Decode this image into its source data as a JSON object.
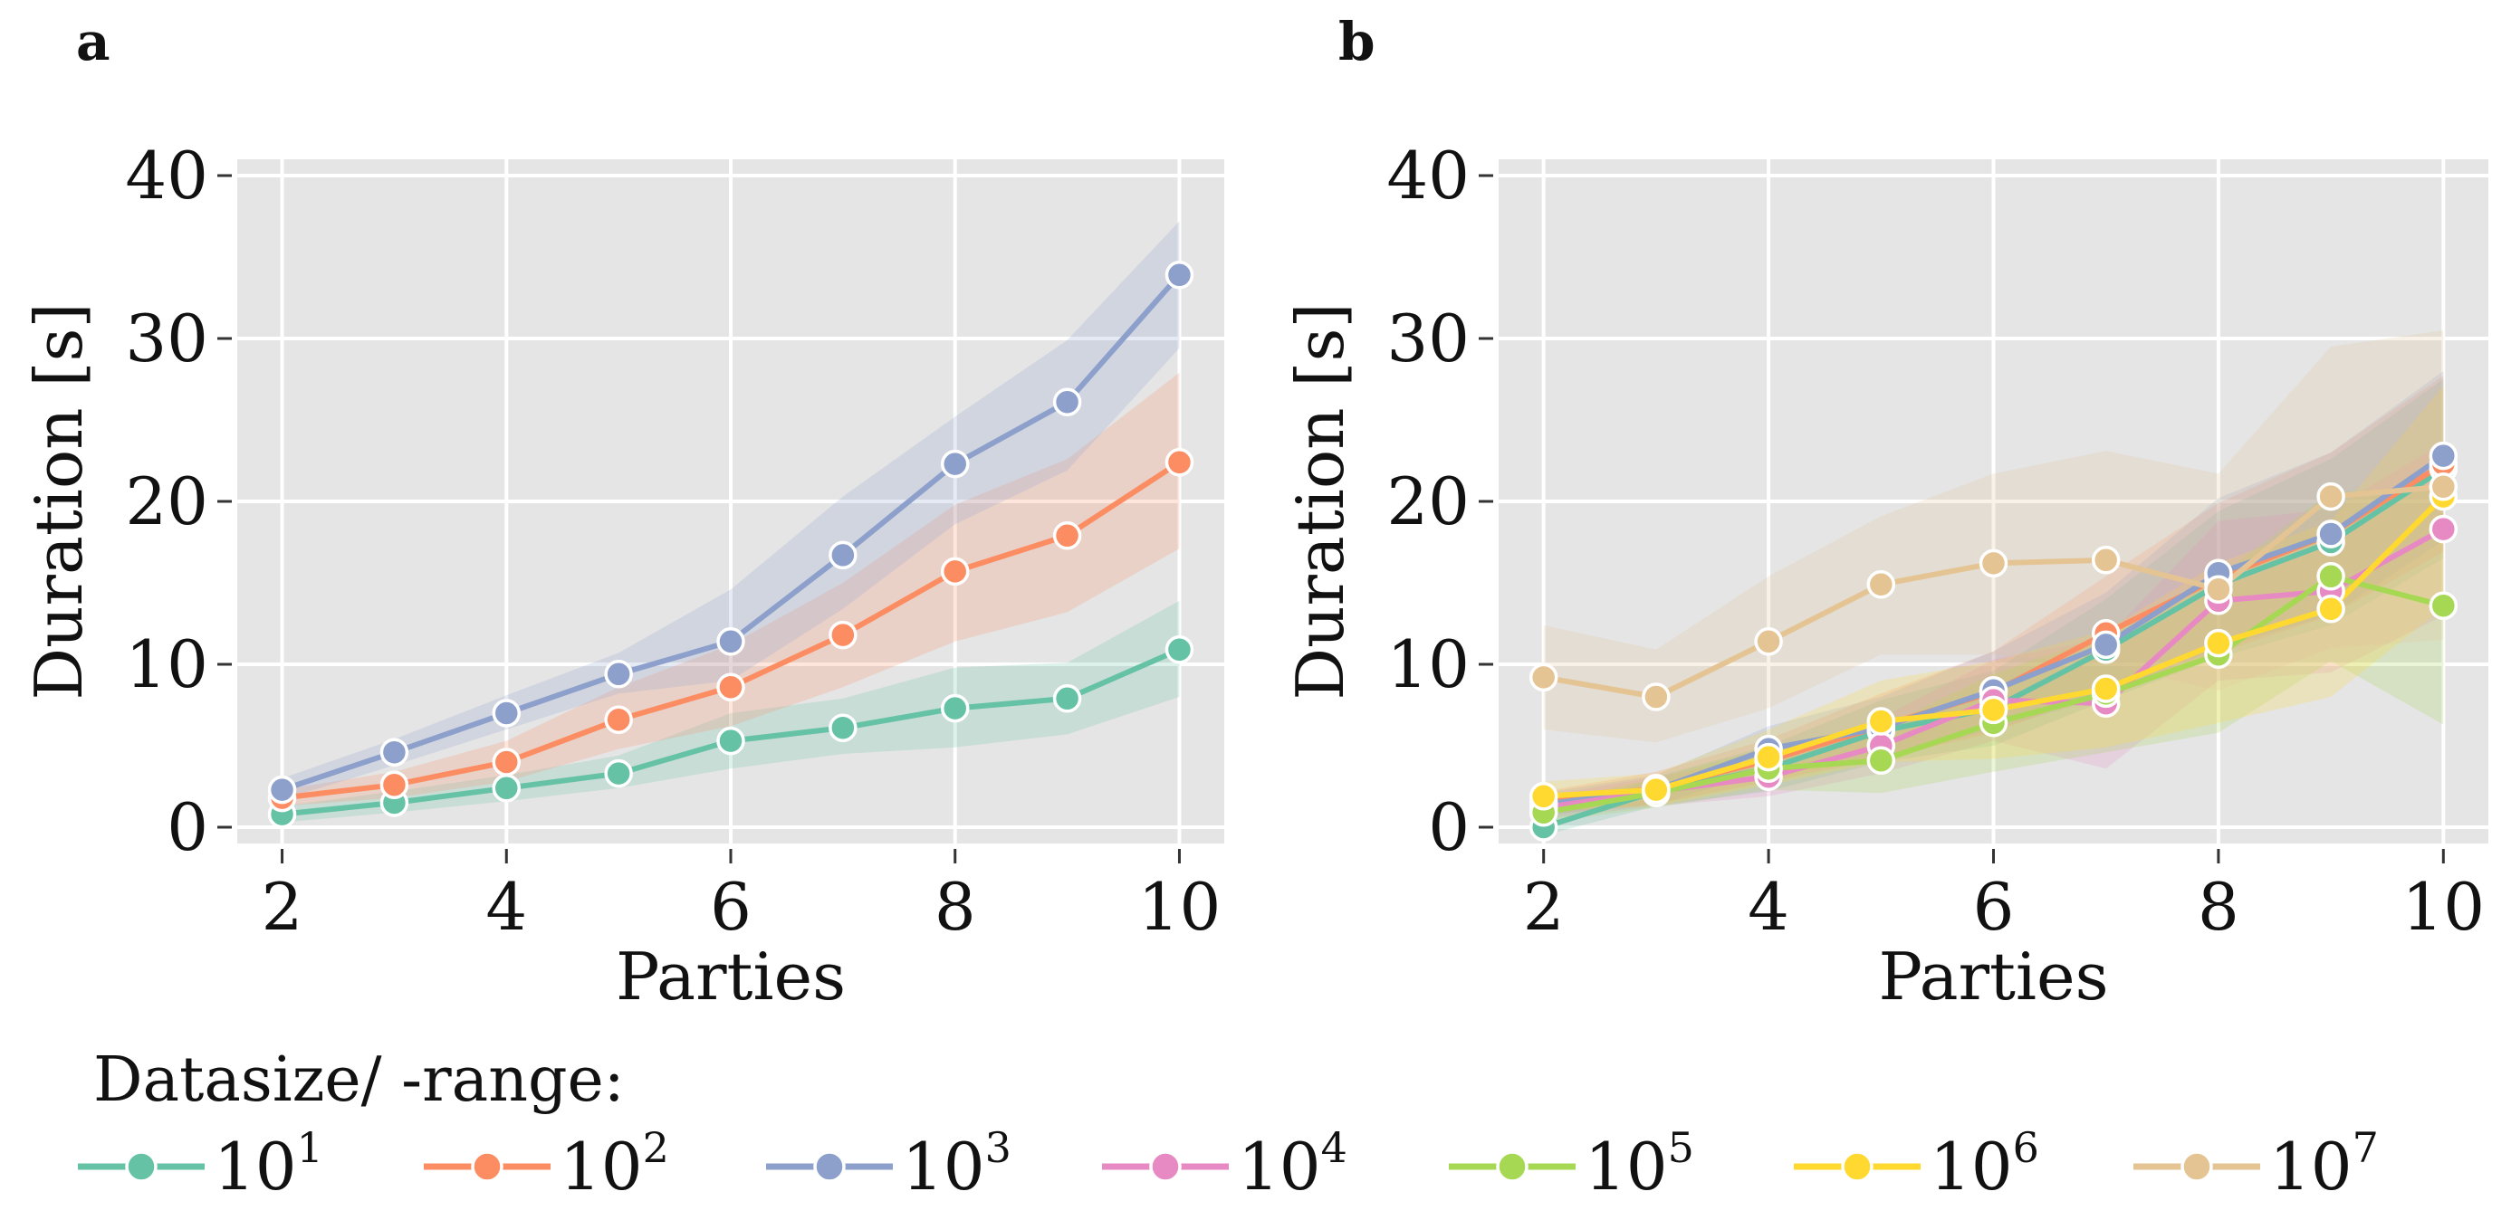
{
  "chart_data": [
    {
      "panel": "a",
      "type": "line",
      "xlabel": "Parties",
      "ylabel": "Duration [s]",
      "xlim": [
        1.6,
        10.4
      ],
      "ylim": [
        -1,
        41
      ],
      "xticks": [
        2,
        4,
        6,
        8,
        10
      ],
      "xtick_labels": [
        "2",
        "4",
        "6",
        "8",
        "10"
      ],
      "yticks": [
        0,
        10,
        20,
        30,
        40
      ],
      "ytick_labels": [
        "0",
        "10",
        "20",
        "30",
        "40"
      ],
      "grid": true,
      "x": [
        2,
        3,
        4,
        5,
        6,
        7,
        8,
        9,
        10
      ],
      "series": [
        {
          "name": "10^1",
          "color": "#66c2a5",
          "values": [
            0.8,
            1.5,
            2.4,
            3.3,
            5.3,
            6.1,
            7.3,
            7.9,
            10.9
          ],
          "lower": [
            0.3,
            0.9,
            1.6,
            2.4,
            3.6,
            4.5,
            4.9,
            5.7,
            8.0
          ],
          "upper": [
            1.3,
            2.2,
            3.2,
            4.4,
            7.0,
            7.9,
            9.8,
            10.1,
            13.9
          ]
        },
        {
          "name": "10^2",
          "color": "#fc8d62",
          "values": [
            1.8,
            2.6,
            4.0,
            6.6,
            8.6,
            11.8,
            15.7,
            17.9,
            22.4
          ],
          "lower": [
            1.3,
            1.8,
            2.8,
            4.8,
            6.2,
            8.6,
            11.4,
            13.2,
            17.1
          ],
          "upper": [
            2.3,
            3.4,
            5.3,
            8.6,
            11.2,
            15.0,
            19.8,
            22.6,
            27.9
          ]
        },
        {
          "name": "10^3",
          "color": "#8da0cb",
          "values": [
            2.3,
            4.6,
            7.0,
            9.4,
            11.4,
            16.7,
            22.3,
            26.1,
            33.9
          ],
          "lower": [
            1.7,
            3.8,
            6.0,
            8.2,
            9.0,
            13.4,
            18.6,
            21.9,
            29.4
          ],
          "upper": [
            3.0,
            5.4,
            8.1,
            10.7,
            14.6,
            20.3,
            25.2,
            29.9,
            37.2
          ]
        }
      ]
    },
    {
      "panel": "b",
      "type": "line",
      "xlabel": "Parties",
      "ylabel": "Duration [s]",
      "xlim": [
        1.6,
        10.4
      ],
      "ylim": [
        -1,
        41
      ],
      "xticks": [
        2,
        4,
        6,
        8,
        10
      ],
      "xtick_labels": [
        "2",
        "4",
        "6",
        "8",
        "10"
      ],
      "yticks": [
        0,
        10,
        20,
        30,
        40
      ],
      "ytick_labels": [
        "0",
        "10",
        "20",
        "30",
        "40"
      ],
      "grid": true,
      "x": [
        2,
        3,
        4,
        5,
        6,
        7,
        8,
        9,
        10
      ],
      "series": [
        {
          "name": "10^1",
          "color": "#66c2a5",
          "values": [
            0.0,
            2.2,
            3.6,
            5.9,
            7.3,
            10.9,
            14.9,
            17.5,
            22.0
          ],
          "lower": [
            -0.5,
            1.3,
            2.2,
            4.0,
            5.0,
            7.8,
            10.4,
            12.4,
            16.5
          ],
          "upper": [
            0.6,
            3.1,
            5.0,
            7.8,
            9.6,
            14.0,
            19.4,
            22.6,
            27.5
          ]
        },
        {
          "name": "10^2",
          "color": "#fc8d62",
          "values": [
            1.5,
            2.4,
            4.1,
            6.2,
            8.3,
            11.9,
            15.3,
            18.0,
            22.3
          ],
          "lower": [
            0.8,
            1.4,
            2.8,
            4.2,
            5.8,
            8.4,
            10.7,
            13.0,
            16.9
          ],
          "upper": [
            2.2,
            3.4,
            5.4,
            8.2,
            10.8,
            15.4,
            19.9,
            23.0,
            27.7
          ]
        },
        {
          "name": "10^3",
          "color": "#8da0cb",
          "values": [
            1.4,
            2.3,
            4.8,
            6.1,
            8.4,
            11.2,
            15.6,
            18.0,
            22.8
          ],
          "lower": [
            0.7,
            1.4,
            3.4,
            4.2,
            6.0,
            8.0,
            11.0,
            13.0,
            17.6
          ],
          "upper": [
            2.1,
            3.2,
            6.2,
            8.0,
            10.8,
            14.4,
            20.2,
            23.0,
            28.0
          ]
        },
        {
          "name": "10^4",
          "color": "#e78ac3",
          "values": [
            1.2,
            2.2,
            3.1,
            5.0,
            7.8,
            7.6,
            13.9,
            14.5,
            18.3
          ],
          "lower": [
            0.5,
            1.3,
            1.9,
            3.3,
            5.3,
            3.6,
            9.0,
            9.5,
            13.0
          ],
          "upper": [
            1.9,
            3.1,
            4.3,
            6.7,
            10.3,
            11.6,
            18.8,
            19.5,
            23.6
          ]
        },
        {
          "name": "10^5",
          "color": "#a6d854",
          "values": [
            0.9,
            2.1,
            3.6,
            4.1,
            6.4,
            8.2,
            10.6,
            15.4,
            13.6
          ],
          "lower": [
            0.3,
            1.2,
            2.3,
            2.1,
            3.4,
            4.6,
            5.8,
            10.2,
            6.3
          ],
          "upper": [
            1.5,
            3.0,
            4.9,
            6.1,
            9.4,
            11.8,
            15.4,
            20.6,
            20.9
          ]
        },
        {
          "name": "10^6",
          "color": "#ffd92f",
          "values": [
            1.9,
            2.3,
            4.3,
            6.5,
            7.2,
            8.5,
            11.3,
            13.4,
            20.3
          ],
          "lower": [
            1.0,
            1.3,
            2.6,
            4.0,
            4.2,
            4.9,
            6.4,
            8.0,
            13.5
          ],
          "upper": [
            2.8,
            3.3,
            6.0,
            9.0,
            10.2,
            12.1,
            16.2,
            18.8,
            27.1
          ]
        },
        {
          "name": "10^7",
          "color": "#e5c494",
          "values": [
            9.2,
            8.0,
            11.4,
            14.9,
            16.2,
            16.4,
            14.6,
            20.3,
            20.9
          ],
          "lower": [
            6.0,
            5.2,
            7.3,
            10.6,
            10.6,
            10.0,
            8.4,
            11.0,
            11.5
          ],
          "upper": [
            12.4,
            10.9,
            15.4,
            19.1,
            21.7,
            23.1,
            21.7,
            29.5,
            30.5
          ]
        }
      ]
    }
  ],
  "legend": {
    "title": "Datasize/ -range:",
    "items": [
      {
        "base": "10",
        "exp": "1",
        "color": "#66c2a5"
      },
      {
        "base": "10",
        "exp": "2",
        "color": "#fc8d62"
      },
      {
        "base": "10",
        "exp": "3",
        "color": "#8da0cb"
      },
      {
        "base": "10",
        "exp": "4",
        "color": "#e78ac3"
      },
      {
        "base": "10",
        "exp": "5",
        "color": "#a6d854"
      },
      {
        "base": "10",
        "exp": "6",
        "color": "#ffd92f"
      },
      {
        "base": "10",
        "exp": "7",
        "color": "#e5c494"
      }
    ]
  },
  "style": {
    "panel_background": "#e5e5e5",
    "grid_color": "#ffffff"
  }
}
